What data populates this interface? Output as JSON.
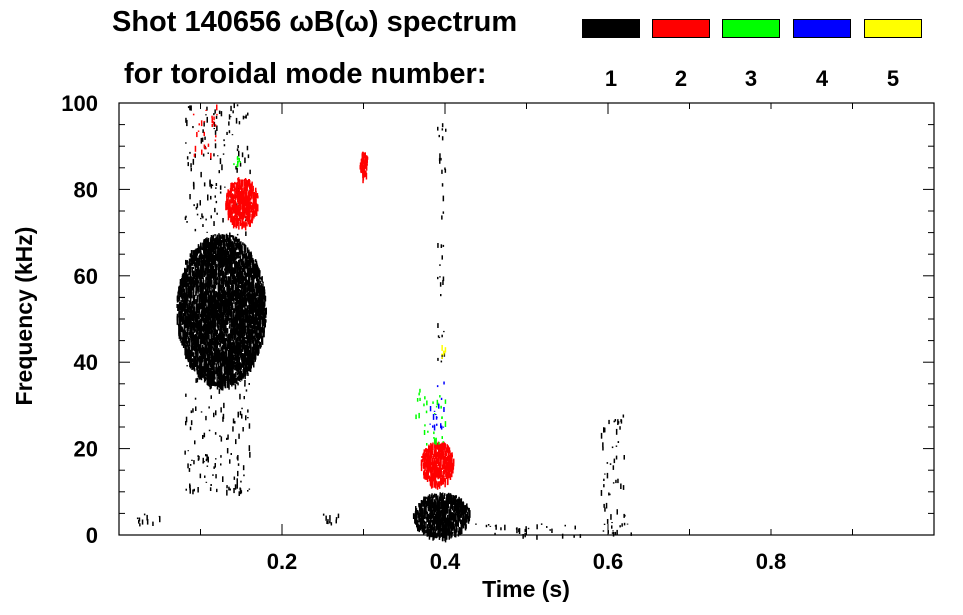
{
  "chart_data": {
    "type": "heatmap",
    "title_line_1": "Shot 140656 ωB(ω) spectrum",
    "title_line_2": "for toroidal mode number:",
    "xlabel": "Time (s)",
    "ylabel": "Frequency (kHz)",
    "xlim": [
      0.0,
      1.0
    ],
    "ylim": [
      0,
      100
    ],
    "x_ticks": [
      0.2,
      0.4,
      0.6,
      0.8
    ],
    "x_tick_labels": [
      "0.2",
      "0.4",
      "0.6",
      "0.8"
    ],
    "y_ticks": [
      0,
      20,
      40,
      60,
      80,
      100
    ],
    "y_tick_labels": [
      "0",
      "20",
      "40",
      "60",
      "80",
      "100"
    ],
    "legend_position": "top-right",
    "legend": [
      {
        "mode": "1",
        "color": "#000000"
      },
      {
        "mode": "2",
        "color": "#ff0000"
      },
      {
        "mode": "3",
        "color": "#00ff00"
      },
      {
        "mode": "4",
        "color": "#0000ff"
      },
      {
        "mode": "5",
        "color": "#ffff00"
      }
    ],
    "regions": [
      {
        "mode": 1,
        "t": [
          0.07,
          0.18
        ],
        "f": [
          35,
          70
        ],
        "density": "high"
      },
      {
        "mode": 1,
        "t": [
          0.08,
          0.16
        ],
        "f": [
          10,
          100
        ],
        "density": "sparse"
      },
      {
        "mode": 1,
        "t": [
          0.36,
          0.43
        ],
        "f": [
          0,
          10
        ],
        "density": "high"
      },
      {
        "mode": 1,
        "t": [
          0.43,
          0.63
        ],
        "f": [
          0,
          3
        ],
        "density": "sparse"
      },
      {
        "mode": 1,
        "t": [
          0.39,
          0.4
        ],
        "f": [
          40,
          100
        ],
        "density": "sparse"
      },
      {
        "mode": 1,
        "t": [
          0.59,
          0.62
        ],
        "f": [
          0,
          28
        ],
        "density": "sparse"
      },
      {
        "mode": 1,
        "t": [
          0.02,
          0.05
        ],
        "f": [
          2,
          5
        ],
        "density": "sparse"
      },
      {
        "mode": 1,
        "t": [
          0.14,
          0.16
        ],
        "f": [
          10,
          15
        ],
        "density": "sparse"
      },
      {
        "mode": 1,
        "t": [
          0.25,
          0.27
        ],
        "f": [
          1,
          5
        ],
        "density": "sparse"
      },
      {
        "mode": 2,
        "t": [
          0.13,
          0.17
        ],
        "f": [
          72,
          83
        ],
        "density": "high"
      },
      {
        "mode": 2,
        "t": [
          0.09,
          0.12
        ],
        "f": [
          88,
          100
        ],
        "density": "sparse"
      },
      {
        "mode": 2,
        "t": [
          0.295,
          0.305
        ],
        "f": [
          83,
          89
        ],
        "density": "high"
      },
      {
        "mode": 2,
        "t": [
          0.37,
          0.41
        ],
        "f": [
          12,
          22
        ],
        "density": "high"
      },
      {
        "mode": 3,
        "t": [
          0.36,
          0.4
        ],
        "f": [
          21,
          34
        ],
        "density": "sparse"
      },
      {
        "mode": 3,
        "t": [
          0.14,
          0.15
        ],
        "f": [
          85,
          88
        ],
        "density": "sparse"
      },
      {
        "mode": 4,
        "t": [
          0.38,
          0.4
        ],
        "f": [
          25,
          36
        ],
        "density": "sparse"
      },
      {
        "mode": 5,
        "t": [
          0.395,
          0.4
        ],
        "f": [
          41,
          44
        ],
        "density": "sparse"
      }
    ]
  }
}
